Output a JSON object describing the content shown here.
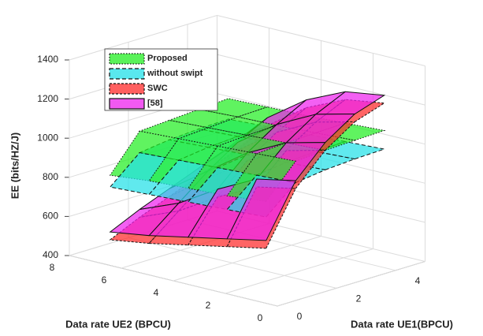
{
  "chart_data": {
    "type": "surface3d",
    "xlabel": "Data rate UE1(BPCU)",
    "ylabel": "Data rate UE2 (BPCU)",
    "zlabel": "EE (bits/HZ/J)",
    "x": [
      0.5,
      1.5,
      2.5,
      3.5,
      4.5
    ],
    "y": [
      1,
      2.5,
      4,
      5.5,
      7
    ],
    "xlim": [
      0,
      5
    ],
    "ylim": [
      0,
      8
    ],
    "zlim": [
      400,
      1400
    ],
    "xticks": [
      0,
      2,
      4
    ],
    "yticks": [
      0,
      2,
      4,
      6,
      8
    ],
    "zticks": [
      400,
      600,
      800,
      1000,
      1200,
      1400
    ],
    "grid": true,
    "series": [
      {
        "name": "Proposed",
        "color": "#22ee22",
        "values": [
          [
            880,
            1040,
            1050,
            1055,
            1060
          ],
          [
            860,
            1030,
            1040,
            1045,
            1050
          ],
          [
            850,
            1020,
            1030,
            1035,
            1040
          ],
          [
            840,
            1010,
            1020,
            1030,
            1035
          ],
          [
            820,
            1000,
            1010,
            1020,
            1030
          ]
        ]
      },
      {
        "name": "without swipt",
        "color": "#22e0e8",
        "values": [
          [
            800,
            930,
            950,
            960,
            965
          ],
          [
            790,
            920,
            940,
            950,
            955
          ],
          [
            780,
            910,
            930,
            940,
            945
          ],
          [
            770,
            900,
            920,
            930,
            935
          ],
          [
            760,
            890,
            910,
            920,
            925
          ]
        ]
      },
      {
        "name": "SWC",
        "color": "#ff2a2a",
        "values": [
          [
            640,
            900,
            1050,
            1150,
            1200
          ],
          [
            600,
            860,
            1000,
            1100,
            1170
          ],
          [
            560,
            760,
            900,
            1000,
            1080
          ],
          [
            520,
            640,
            760,
            860,
            940
          ],
          [
            490,
            560,
            620,
            680,
            740
          ]
        ]
      },
      {
        "name": "[58]",
        "color": "#ee22ee",
        "values": [
          [
            680,
            940,
            1090,
            1190,
            1240
          ],
          [
            640,
            900,
            1040,
            1140,
            1210
          ],
          [
            600,
            800,
            940,
            1040,
            1120
          ],
          [
            560,
            680,
            800,
            900,
            980
          ],
          [
            530,
            600,
            660,
            720,
            780
          ]
        ]
      }
    ]
  }
}
